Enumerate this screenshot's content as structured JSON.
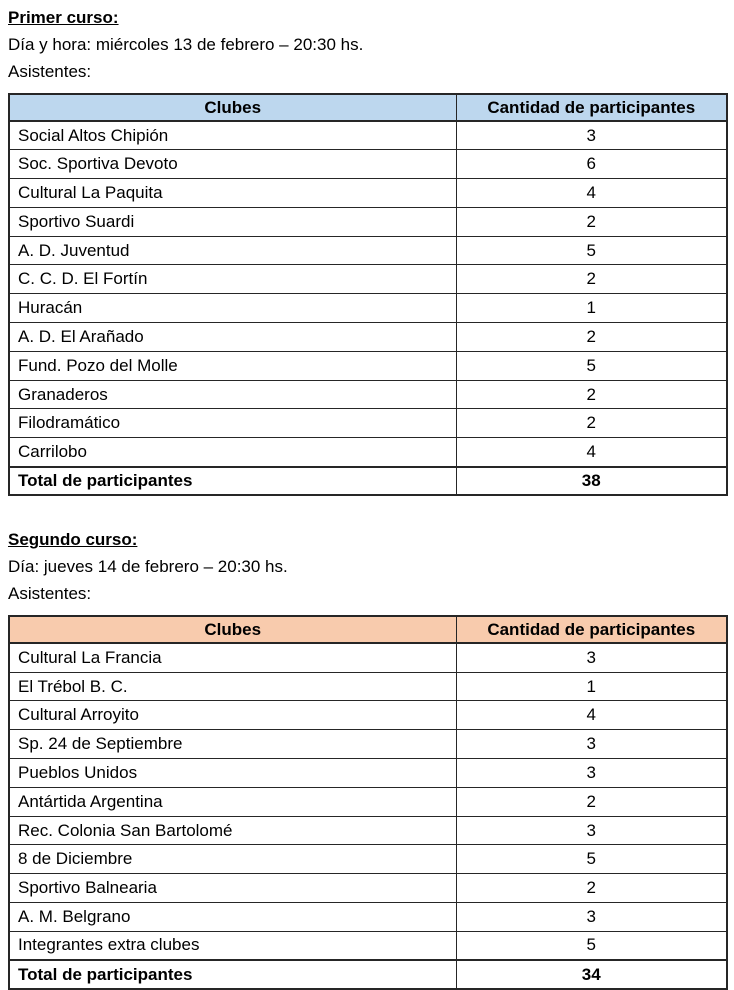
{
  "colors": {
    "table1_header_bg": "#BDD7EE",
    "table2_header_bg": "#F8CBAD",
    "border": "#262626"
  },
  "sections": [
    {
      "title": "Primer curso:",
      "date_line": "Día y hora: miércoles 13 de febrero – 20:30 hs.",
      "attendees_label": "Asistentes:",
      "table": {
        "columns": [
          "Clubes",
          "Cantidad de participantes"
        ],
        "rows": [
          {
            "club": "Social Altos Chipión",
            "count": "3"
          },
          {
            "club": "Soc. Sportiva Devoto",
            "count": "6"
          },
          {
            "club": "Cultural La Paquita",
            "count": "4"
          },
          {
            "club": "Sportivo Suardi",
            "count": "2"
          },
          {
            "club": "A. D. Juventud",
            "count": "5"
          },
          {
            "club": "C. C. D. El Fortín",
            "count": "2"
          },
          {
            "club": "Huracán",
            "count": "1"
          },
          {
            "club": "A. D. El Arañado",
            "count": "2"
          },
          {
            "club": "Fund. Pozo del Molle",
            "count": "5"
          },
          {
            "club": "Granaderos",
            "count": "2"
          },
          {
            "club": "Filodramático",
            "count": "2"
          },
          {
            "club": "Carrilobo",
            "count": "4"
          }
        ],
        "total_label": "Total de participantes",
        "total_value": "38"
      }
    },
    {
      "title": "Segundo curso:",
      "date_line": "Día: jueves 14 de febrero – 20:30 hs.",
      "attendees_label": "Asistentes:",
      "table": {
        "columns": [
          "Clubes",
          "Cantidad de participantes"
        ],
        "rows": [
          {
            "club": "Cultural La Francia",
            "count": "3"
          },
          {
            "club": "El Trébol B. C.",
            "count": "1"
          },
          {
            "club": "Cultural Arroyito",
            "count": "4"
          },
          {
            "club": "Sp. 24 de Septiembre",
            "count": "3"
          },
          {
            "club": "Pueblos Unidos",
            "count": "3"
          },
          {
            "club": "Antártida Argentina",
            "count": "2"
          },
          {
            "club": "Rec. Colonia San Bartolomé",
            "count": "3"
          },
          {
            "club": "8 de Diciembre",
            "count": "5"
          },
          {
            "club": "Sportivo Balnearia",
            "count": "2"
          },
          {
            "club": "A. M. Belgrano",
            "count": "3"
          },
          {
            "club": "Integrantes extra clubes",
            "count": "5"
          }
        ],
        "total_label": "Total de participantes",
        "total_value": "34"
      }
    }
  ]
}
